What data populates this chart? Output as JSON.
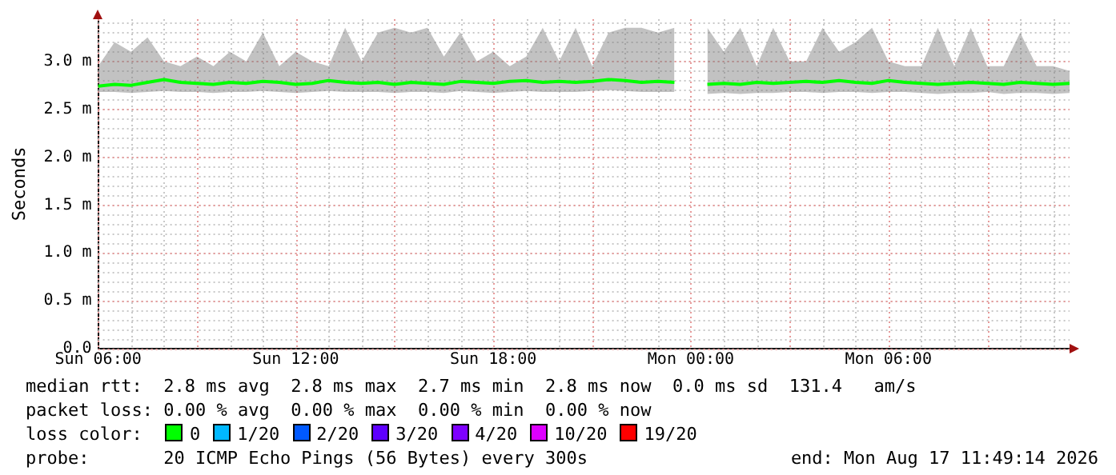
{
  "chart_data": {
    "type": "line",
    "ylabel": "Seconds",
    "categories": [
      "Sun 06:00",
      null,
      null,
      null,
      null,
      null,
      null,
      null,
      null,
      null,
      null,
      null,
      "Sun 12:00",
      null,
      null,
      null,
      null,
      null,
      null,
      null,
      null,
      null,
      null,
      null,
      "Sun 18:00",
      null,
      null,
      null,
      null,
      null,
      null,
      null,
      null,
      null,
      null,
      null,
      "Mon 00:00",
      null,
      null,
      null,
      null,
      null,
      null,
      null,
      null,
      null,
      null,
      null,
      "Mon 06:00",
      null,
      null,
      null,
      null,
      null,
      null,
      null,
      null,
      null,
      null,
      null
    ],
    "series": [
      {
        "color": "#00ff00",
        "values": [
          2.74,
          2.76,
          2.75,
          2.78,
          2.81,
          2.78,
          2.77,
          2.76,
          2.78,
          2.77,
          2.79,
          2.78,
          2.76,
          2.77,
          2.8,
          2.78,
          2.77,
          2.78,
          2.76,
          2.78,
          2.77,
          2.76,
          2.79,
          2.78,
          2.77,
          2.79,
          2.8,
          2.78,
          2.79,
          2.78,
          2.79,
          2.81,
          2.8,
          2.78,
          2.79,
          2.78,
          null,
          2.76,
          2.77,
          2.76,
          2.78,
          2.77,
          2.78,
          2.79,
          2.78,
          2.8,
          2.78,
          2.77,
          2.8,
          2.78,
          2.77,
          2.76,
          2.77,
          2.78,
          2.77,
          2.76,
          2.78,
          2.77,
          2.76,
          2.77
        ],
        "lower": [
          2.68,
          2.68,
          2.67,
          2.68,
          2.69,
          2.68,
          2.68,
          2.67,
          2.68,
          2.68,
          2.69,
          2.68,
          2.67,
          2.68,
          2.69,
          2.68,
          2.68,
          2.68,
          2.67,
          2.68,
          2.68,
          2.67,
          2.69,
          2.68,
          2.67,
          2.68,
          2.69,
          2.68,
          2.68,
          2.68,
          2.69,
          2.7,
          2.69,
          2.68,
          2.68,
          2.68,
          null,
          2.66,
          2.67,
          2.66,
          2.67,
          2.67,
          2.68,
          2.68,
          2.67,
          2.68,
          2.68,
          2.67,
          2.68,
          2.68,
          2.67,
          2.66,
          2.67,
          2.67,
          2.68,
          2.66,
          2.67,
          2.67,
          2.66,
          2.67
        ],
        "upper": [
          2.95,
          3.2,
          3.1,
          3.25,
          3.0,
          2.95,
          3.05,
          2.95,
          3.1,
          3.0,
          3.3,
          2.95,
          3.1,
          3.0,
          2.95,
          3.35,
          3.0,
          3.3,
          3.35,
          3.3,
          3.35,
          3.05,
          3.3,
          3.0,
          3.1,
          2.95,
          3.05,
          3.35,
          3.0,
          3.35,
          2.95,
          3.3,
          3.35,
          3.35,
          3.3,
          3.35,
          null,
          3.35,
          3.1,
          3.35,
          2.95,
          3.35,
          3.0,
          3.0,
          3.35,
          3.1,
          3.2,
          3.35,
          3.0,
          2.95,
          2.95,
          3.35,
          2.95,
          3.35,
          2.95,
          2.95,
          3.3,
          2.95,
          2.95,
          2.9
        ]
      }
    ],
    "ylim": [
      0,
      3.44
    ],
    "yticks": [
      {
        "value": 0,
        "label": "0.0"
      },
      {
        "value": 0.5,
        "label": "0.5 m"
      },
      {
        "value": 1,
        "label": "1.0 m"
      },
      {
        "value": 1.5,
        "label": "1.5 m"
      },
      {
        "value": 2,
        "label": "2.0 m"
      },
      {
        "value": 2.5,
        "label": "2.5 m"
      },
      {
        "value": 3,
        "label": "3.0 m"
      }
    ],
    "grid": true,
    "legend": false,
    "annotations": [
      "median rtt:  2.8 ms avg  2.8 ms max  2.7 ms min  2.8 ms now  0.0 ms sd  131.4   am/s",
      "packet loss: 0.00 % avg  0.00 % max  0.00 % min  0.00 % now",
      "loss color:",
      "0",
      "1/20",
      "2/20",
      "3/20",
      "4/20",
      "10/20",
      "19/20",
      "probe:       20 ICMP Echo Pings (56 Bytes) every 300s",
      "end: Mon Aug 17 11:49:14 2026"
    ]
  }
}
